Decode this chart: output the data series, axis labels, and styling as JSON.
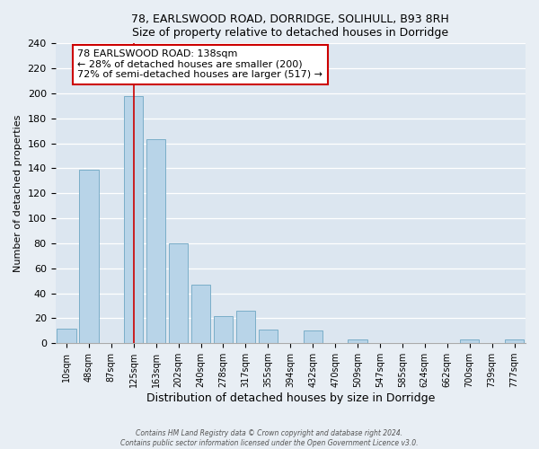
{
  "title1": "78, EARLSWOOD ROAD, DORRIDGE, SOLIHULL, B93 8RH",
  "title2": "Size of property relative to detached houses in Dorridge",
  "xlabel": "Distribution of detached houses by size in Dorridge",
  "ylabel": "Number of detached properties",
  "bar_labels": [
    "10sqm",
    "48sqm",
    "87sqm",
    "125sqm",
    "163sqm",
    "202sqm",
    "240sqm",
    "278sqm",
    "317sqm",
    "355sqm",
    "394sqm",
    "432sqm",
    "470sqm",
    "509sqm",
    "547sqm",
    "585sqm",
    "624sqm",
    "662sqm",
    "700sqm",
    "739sqm",
    "777sqm"
  ],
  "bar_values": [
    12,
    139,
    0,
    198,
    163,
    80,
    47,
    22,
    26,
    11,
    0,
    10,
    0,
    3,
    0,
    0,
    0,
    0,
    3,
    0,
    3
  ],
  "bar_color": "#b8d4e8",
  "bar_edgecolor": "#7aaec8",
  "property_line_x": 3,
  "property_line_color": "#cc0000",
  "annotation_line1": "78 EARLSWOOD ROAD: 138sqm",
  "annotation_line2": "← 28% of detached houses are smaller (200)",
  "annotation_line3": "72% of semi-detached houses are larger (517) →",
  "annotation_box_color": "#ffffff",
  "annotation_box_edgecolor": "#cc0000",
  "ylim": [
    0,
    240
  ],
  "yticks": [
    0,
    20,
    40,
    60,
    80,
    100,
    120,
    140,
    160,
    180,
    200,
    220,
    240
  ],
  "footer1": "Contains HM Land Registry data © Crown copyright and database right 2024.",
  "footer2": "Contains public sector information licensed under the Open Government Licence v3.0.",
  "background_color": "#e8eef4",
  "grid_color": "#ffffff",
  "plot_bg_color": "#dce6f0"
}
